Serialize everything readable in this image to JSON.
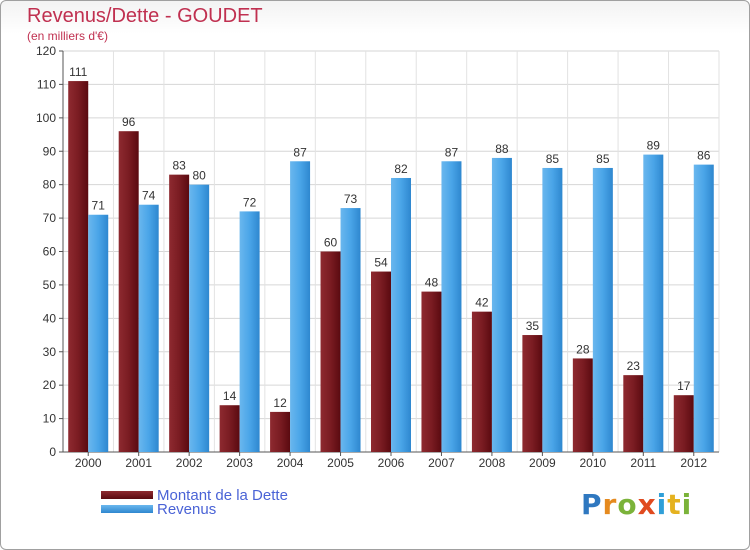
{
  "header": {
    "title": "Revenus/Dette - GOUDET",
    "subtitle": "(en milliers d'€)"
  },
  "legend": {
    "items": [
      {
        "label": "Montant de la Dette",
        "color": "#6b0d14"
      },
      {
        "label": "Revenus",
        "color": "#3f9ee4"
      }
    ]
  },
  "logo": {
    "text": "Proxiti",
    "letters": [
      {
        "ch": "P",
        "color": "#2f78c0"
      },
      {
        "ch": "r",
        "color": "#e58a1f"
      },
      {
        "ch": "o",
        "color": "#7bb33a"
      },
      {
        "ch": "x",
        "color": "#e04a1f"
      },
      {
        "ch": "i",
        "color": "#2f9fd8"
      },
      {
        "ch": "t",
        "color": "#e5b21f"
      },
      {
        "ch": "i",
        "color": "#7bb33a"
      }
    ]
  },
  "chart_data": {
    "type": "bar",
    "title": "Revenus/Dette - GOUDET",
    "subtitle": "(en milliers d'€)",
    "categories": [
      "2000",
      "2001",
      "2002",
      "2003",
      "2004",
      "2005",
      "2006",
      "2007",
      "2008",
      "2009",
      "2010",
      "2011",
      "2012"
    ],
    "series": [
      {
        "name": "Montant de la Dette",
        "color": "#6b0d14",
        "values": [
          111,
          96,
          83,
          14,
          12,
          60,
          54,
          48,
          42,
          35,
          28,
          23,
          17
        ]
      },
      {
        "name": "Revenus",
        "color": "#3f9ee4",
        "values": [
          71,
          74,
          80,
          72,
          87,
          73,
          82,
          87,
          88,
          85,
          85,
          89,
          86
        ]
      }
    ],
    "ylim": [
      0,
      120
    ],
    "yticks": [
      0,
      10,
      20,
      30,
      40,
      50,
      60,
      70,
      80,
      90,
      100,
      110,
      120
    ],
    "grid": true,
    "legend_position": "bottom-left"
  }
}
